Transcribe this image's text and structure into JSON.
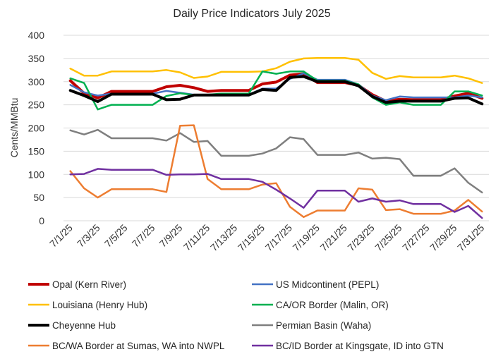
{
  "chart_data": {
    "type": "line",
    "title": "Daily Price Indicators July 2025",
    "ylabel": "Cents/MMBtu",
    "xlabel": "",
    "ylim": [
      0,
      400
    ],
    "yticks": [
      0,
      50,
      100,
      150,
      200,
      250,
      300,
      350,
      400
    ],
    "grid": true,
    "legend_position": "bottom",
    "x": [
      "7/1/25",
      "7/2/25",
      "7/3/25",
      "7/4/25",
      "7/5/25",
      "7/6/25",
      "7/7/25",
      "7/8/25",
      "7/9/25",
      "7/10/25",
      "7/11/25",
      "7/12/25",
      "7/13/25",
      "7/14/25",
      "7/15/25",
      "7/16/25",
      "7/17/25",
      "7/18/25",
      "7/19/25",
      "7/20/25",
      "7/21/25",
      "7/22/25",
      "7/23/25",
      "7/24/25",
      "7/25/25",
      "7/26/25",
      "7/27/25",
      "7/28/25",
      "7/29/25",
      "7/30/25",
      "7/31/25"
    ],
    "x_tick_labels": [
      "7/1/25",
      "7/3/25",
      "7/5/25",
      "7/7/25",
      "7/9/25",
      "7/11/25",
      "7/13/25",
      "7/15/25",
      "7/17/25",
      "7/19/25",
      "7/21/25",
      "7/23/25",
      "7/25/25",
      "7/27/25",
      "7/29/25",
      "7/31/25"
    ],
    "series": [
      {
        "name": "Opal (Kern River)",
        "color": "#c00000",
        "width": 4,
        "values": [
          302,
          275,
          265,
          279,
          279,
          279,
          279,
          289,
          292,
          287,
          279,
          281,
          281,
          281,
          295,
          299,
          314,
          317,
          298,
          298,
          298,
          292,
          272,
          258,
          262,
          261,
          261,
          261,
          269,
          275,
          264
        ]
      },
      {
        "name": "US Midcontinent (PEPL)",
        "color": "#4472c4",
        "width": 2.5,
        "values": [
          293,
          277,
          270,
          274,
          274,
          274,
          274,
          280,
          276,
          272,
          272,
          272,
          272,
          272,
          285,
          285,
          306,
          318,
          304,
          304,
          304,
          294,
          270,
          260,
          268,
          266,
          266,
          266,
          266,
          270,
          266
        ]
      },
      {
        "name": "Louisiana (Henry Hub)",
        "color": "#ffc000",
        "width": 2.5,
        "values": [
          328,
          313,
          313,
          322,
          322,
          322,
          322,
          325,
          320,
          308,
          311,
          321,
          321,
          321,
          322,
          329,
          343,
          350,
          351,
          351,
          351,
          347,
          319,
          306,
          312,
          309,
          309,
          309,
          313,
          307,
          297
        ]
      },
      {
        "name": "CA/OR Border (Malin, OR)",
        "color": "#00b050",
        "width": 2.5,
        "values": [
          307,
          297,
          240,
          250,
          250,
          250,
          250,
          269,
          275,
          271,
          272,
          274,
          274,
          274,
          322,
          317,
          322,
          322,
          302,
          302,
          302,
          294,
          266,
          250,
          255,
          250,
          250,
          250,
          279,
          279,
          270
        ]
      },
      {
        "name": "Cheyenne Hub",
        "color": "#000000",
        "width": 4,
        "values": [
          281,
          270,
          257,
          273,
          273,
          273,
          273,
          261,
          262,
          271,
          271,
          271,
          271,
          271,
          283,
          281,
          309,
          311,
          300,
          300,
          300,
          291,
          268,
          255,
          258,
          258,
          258,
          258,
          264,
          265,
          252
        ]
      },
      {
        "name": "Permian Basin (Waha)",
        "color": "#7f7f7f",
        "width": 2.5,
        "values": [
          195,
          186,
          196,
          178,
          178,
          178,
          178,
          173,
          189,
          170,
          172,
          140,
          140,
          140,
          145,
          156,
          180,
          176,
          142,
          142,
          142,
          147,
          134,
          136,
          133,
          97,
          97,
          97,
          113,
          82,
          61
        ]
      },
      {
        "name": "BC/WA Border at Sumas, WA into NWPL",
        "color": "#ed7d31",
        "width": 2.5,
        "values": [
          107,
          70,
          50,
          68,
          68,
          68,
          68,
          62,
          205,
          206,
          90,
          68,
          68,
          68,
          78,
          81,
          30,
          8,
          22,
          22,
          22,
          70,
          67,
          23,
          25,
          15,
          15,
          15,
          22,
          45,
          20
        ]
      },
      {
        "name": "BC/ID Border at Kingsgate, ID into GTN",
        "color": "#7030a0",
        "width": 2.5,
        "values": [
          100,
          101,
          112,
          110,
          110,
          110,
          110,
          99,
          100,
          100,
          101,
          90,
          90,
          90,
          84,
          67,
          48,
          28,
          65,
          65,
          65,
          41,
          48,
          41,
          44,
          36,
          36,
          36,
          19,
          32,
          6
        ]
      }
    ]
  }
}
